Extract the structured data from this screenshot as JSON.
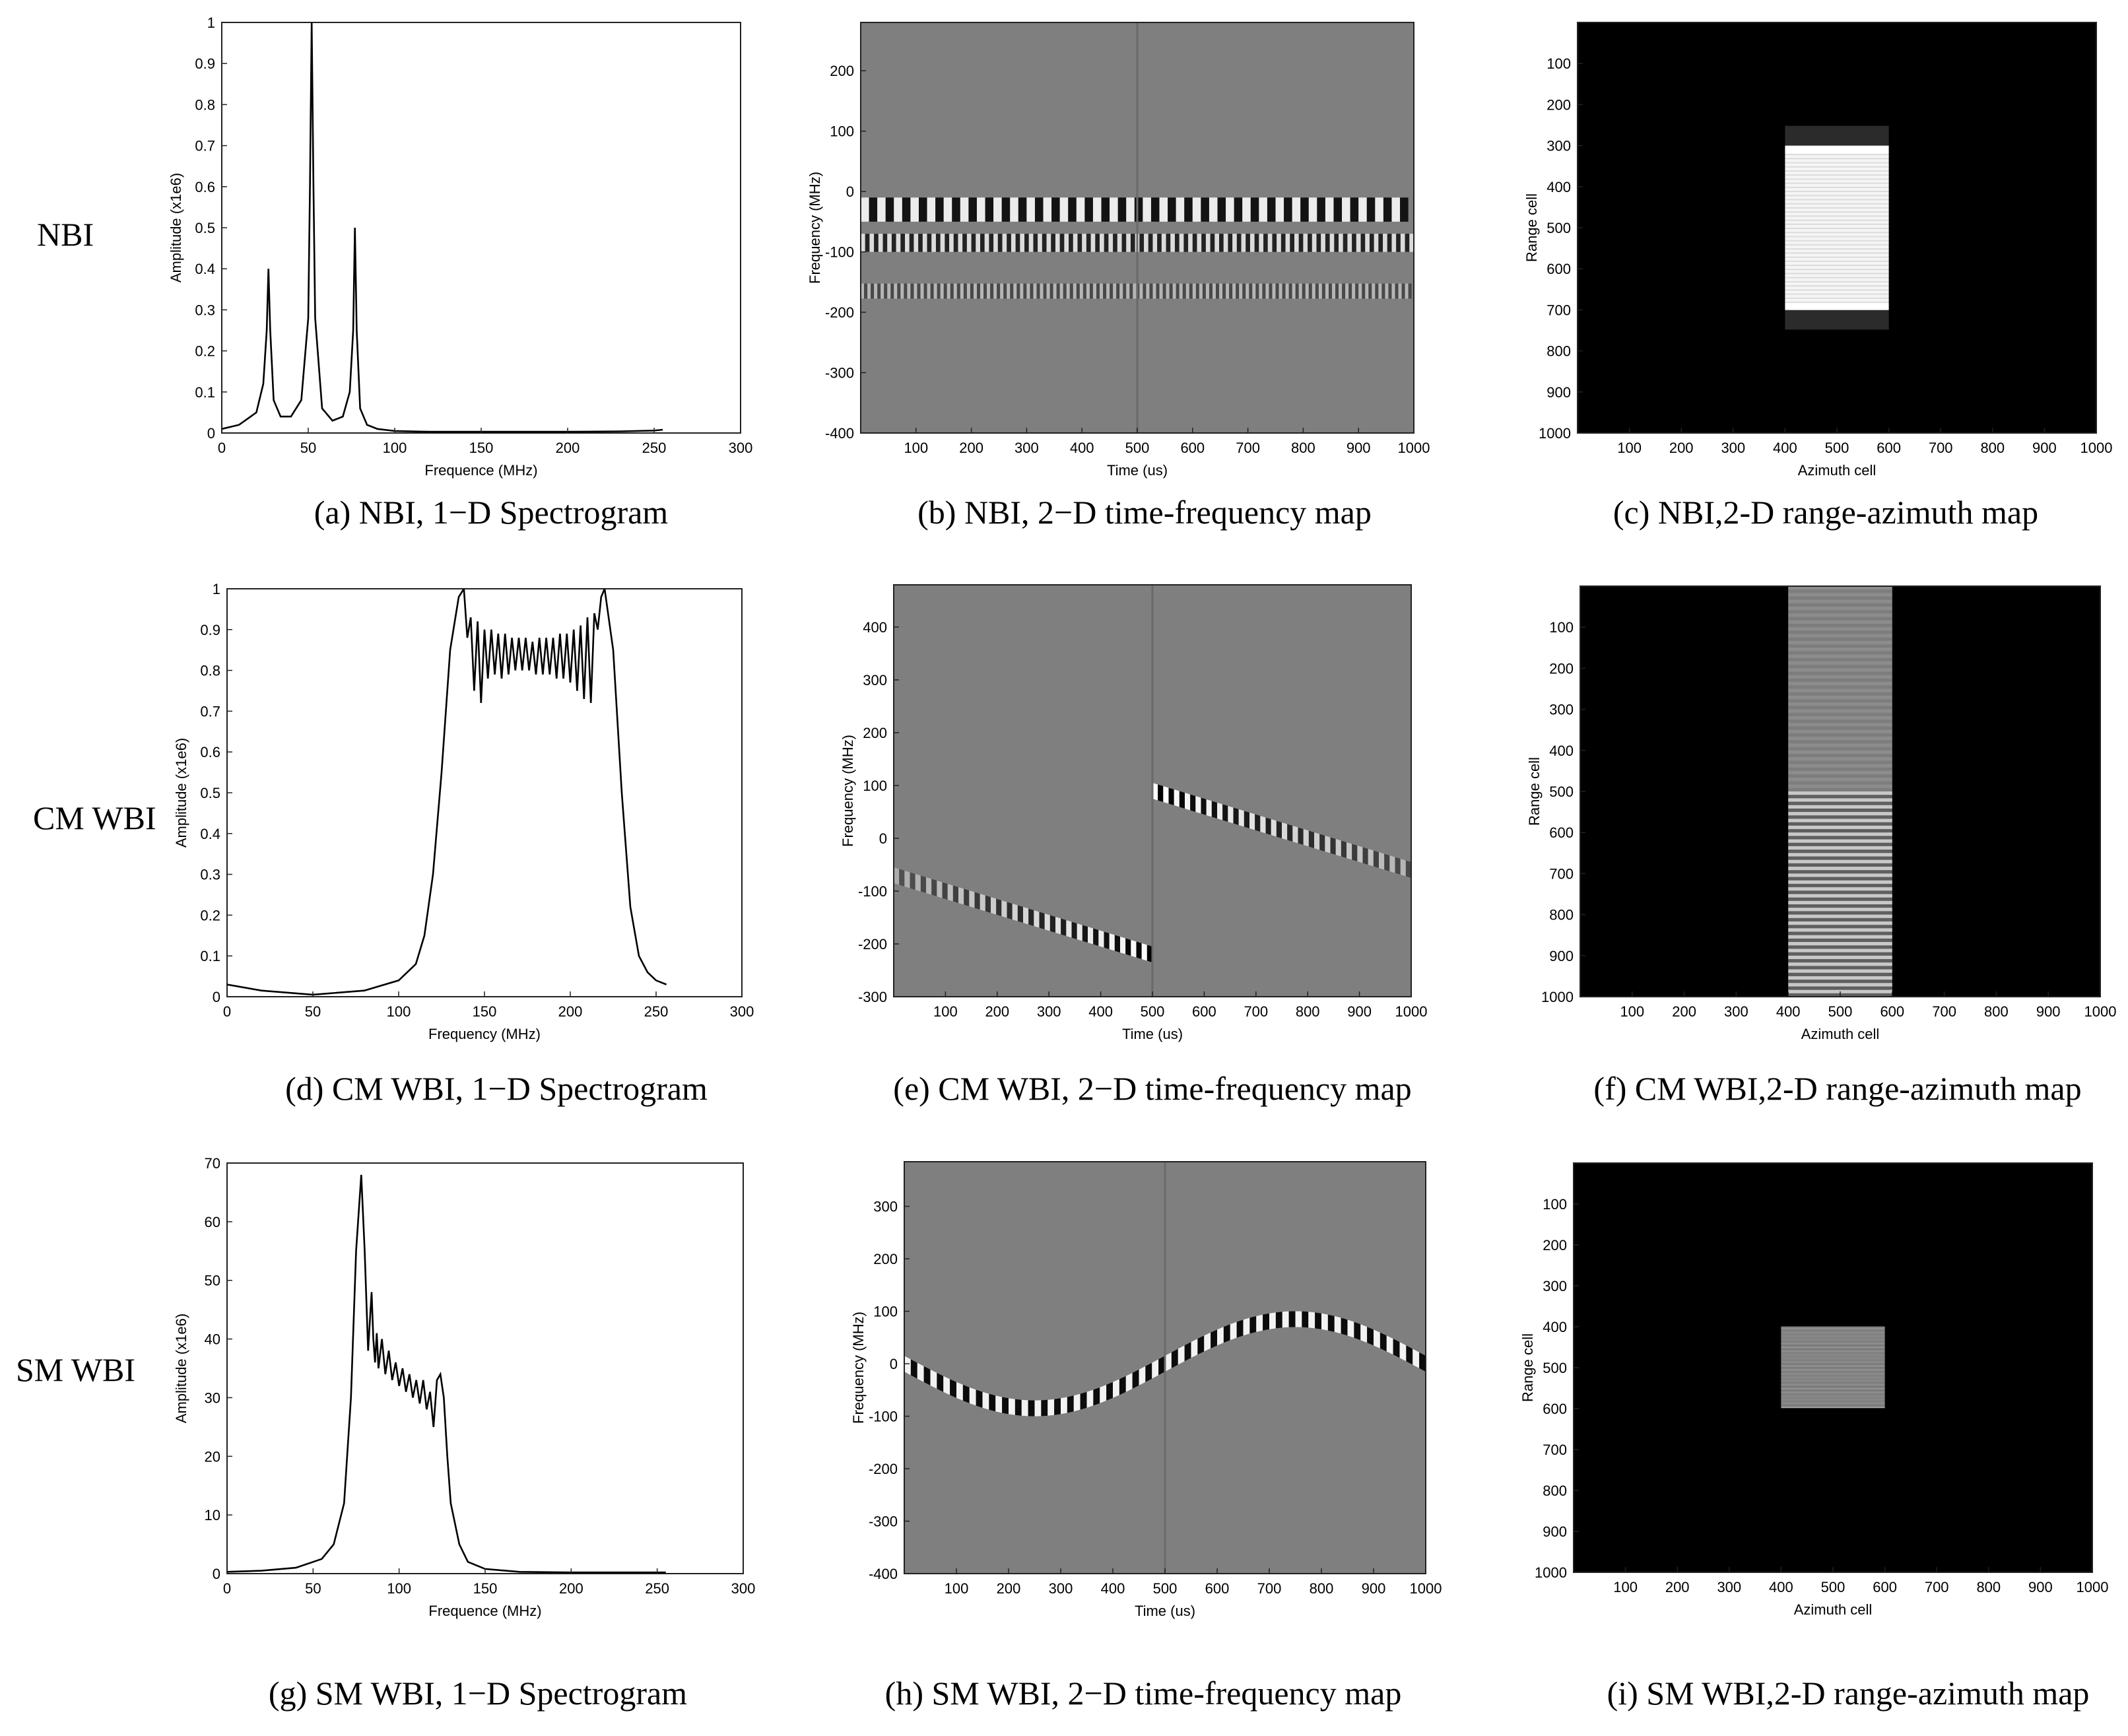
{
  "row_labels": [
    "NBI",
    "CM WBI",
    "SM WBI"
  ],
  "captions": [
    "(a) NBI, 1−D Spectrogram",
    "(b) NBI, 2−D  time-frequency map",
    "(c) NBI,2-D  range-azimuth  map",
    "(d) CM WBI, 1−D Spectrogram",
    "(e) CM WBI, 2−D  time-frequency map",
    "(f) CM WBI,2-D  range-azimuth  map",
    "(g) SM WBI, 1−D Spectrogram",
    "(h) SM WBI, 2−D  time-frequency map",
    "(i) SM WBI,2-D  range-azimuth  map"
  ],
  "chart_data": [
    {
      "id": "a",
      "type": "line",
      "xlabel": "Frequence (MHz)",
      "ylabel": "Amplitude (x1e6)",
      "xlim": [
        0,
        300
      ],
      "ylim": [
        0,
        1
      ],
      "xticks": [
        "0",
        "50",
        "100",
        "150",
        "200",
        "250",
        "300"
      ],
      "yticks": [
        "0",
        "0.1",
        "0.2",
        "0.3",
        "0.4",
        "0.5",
        "0.6",
        "0.7",
        "0.8",
        "0.9",
        "1"
      ],
      "x": [
        0,
        10,
        20,
        24,
        26,
        27,
        28,
        30,
        34,
        40,
        46,
        50,
        51,
        52,
        53,
        54,
        58,
        64,
        70,
        74,
        76,
        77,
        78,
        80,
        84,
        90,
        100,
        120,
        150,
        200,
        230,
        250,
        255
      ],
      "y": [
        0.01,
        0.02,
        0.05,
        0.12,
        0.25,
        0.4,
        0.25,
        0.08,
        0.04,
        0.04,
        0.08,
        0.28,
        0.6,
        1.0,
        0.6,
        0.28,
        0.06,
        0.03,
        0.04,
        0.1,
        0.25,
        0.5,
        0.25,
        0.06,
        0.02,
        0.01,
        0.005,
        0.003,
        0.003,
        0.003,
        0.004,
        0.006,
        0.008
      ]
    },
    {
      "id": "b",
      "type": "heatmap",
      "xlabel": "Time (us)",
      "ylabel": "Frequency (MHz)",
      "xlim": [
        0,
        1000
      ],
      "ylim": [
        -400,
        280
      ],
      "xticks": [
        "100",
        "200",
        "300",
        "400",
        "500",
        "600",
        "700",
        "800",
        "900",
        "1000"
      ],
      "yticks": [
        "200",
        "100",
        "0",
        "-100",
        "-200",
        "-300",
        "-400"
      ],
      "background_gray": "#7f7f7f",
      "bands": [
        {
          "freq": -30,
          "width_mhz": 40,
          "strength": 1.0,
          "period_us": 30,
          "start_us": 0,
          "end_us": 1000
        },
        {
          "freq": -85,
          "width_mhz": 30,
          "strength": 0.85,
          "period_us": 16,
          "start_us": 0,
          "end_us": 1000
        },
        {
          "freq": -165,
          "width_mhz": 25,
          "strength": 0.5,
          "period_us": 12,
          "start_us": 0,
          "end_us": 1000
        }
      ]
    },
    {
      "id": "c",
      "type": "heatmap",
      "xlabel": "Azimuth cell",
      "ylabel": "Range cell",
      "xlim": [
        0,
        1000
      ],
      "ylim": [
        1000,
        0
      ],
      "xticks": [
        "100",
        "200",
        "300",
        "400",
        "500",
        "600",
        "700",
        "800",
        "900",
        "1000"
      ],
      "yticks": [
        "100",
        "200",
        "300",
        "400",
        "500",
        "600",
        "700",
        "800",
        "900",
        "1000"
      ],
      "block": {
        "az": [
          400,
          600
        ],
        "range": [
          300,
          700
        ],
        "pattern": "nbi"
      }
    },
    {
      "id": "d",
      "type": "line",
      "xlabel": "Frequency (MHz)",
      "ylabel": "Amplitude (x1e6)",
      "xlim": [
        0,
        300
      ],
      "ylim": [
        0,
        1
      ],
      "xticks": [
        "0",
        "50",
        "100",
        "150",
        "200",
        "250",
        "300"
      ],
      "yticks": [
        "0",
        "0.1",
        "0.2",
        "0.3",
        "0.4",
        "0.5",
        "0.6",
        "0.7",
        "0.8",
        "0.9",
        "1"
      ],
      "x": [
        0,
        20,
        50,
        80,
        100,
        110,
        115,
        120,
        125,
        130,
        135,
        138,
        140,
        142,
        144,
        146,
        148,
        150,
        152,
        154,
        156,
        158,
        160,
        162,
        164,
        166,
        168,
        170,
        172,
        174,
        176,
        178,
        180,
        182,
        184,
        186,
        188,
        190,
        192,
        194,
        196,
        198,
        200,
        202,
        204,
        206,
        208,
        210,
        212,
        214,
        216,
        218,
        220,
        225,
        230,
        235,
        240,
        245,
        250,
        256
      ],
      "y": [
        0.03,
        0.015,
        0.005,
        0.015,
        0.04,
        0.08,
        0.15,
        0.3,
        0.55,
        0.85,
        0.98,
        1.0,
        0.88,
        0.93,
        0.75,
        0.92,
        0.72,
        0.9,
        0.78,
        0.9,
        0.79,
        0.89,
        0.78,
        0.89,
        0.79,
        0.88,
        0.8,
        0.88,
        0.8,
        0.88,
        0.8,
        0.87,
        0.79,
        0.88,
        0.79,
        0.88,
        0.79,
        0.88,
        0.78,
        0.89,
        0.78,
        0.89,
        0.77,
        0.9,
        0.75,
        0.91,
        0.73,
        0.93,
        0.72,
        0.94,
        0.9,
        0.98,
        1.0,
        0.85,
        0.5,
        0.22,
        0.1,
        0.06,
        0.04,
        0.03
      ]
    },
    {
      "id": "e",
      "type": "heatmap",
      "xlabel": "Time (us)",
      "ylabel": "Frequency (MHz)",
      "xlim": [
        0,
        1000
      ],
      "ylim": [
        -300,
        480
      ],
      "xticks": [
        "100",
        "200",
        "300",
        "400",
        "500",
        "600",
        "700",
        "800",
        "900",
        "1000"
      ],
      "yticks": [
        "400",
        "300",
        "200",
        "100",
        "0",
        "-100",
        "-200",
        "-300"
      ],
      "background_gray": "#7f7f7f",
      "chirps": [
        {
          "t": [
            0,
            500
          ],
          "f": [
            -70,
            -220
          ]
        },
        {
          "t": [
            500,
            1000
          ],
          "f": [
            90,
            -60
          ]
        }
      ]
    },
    {
      "id": "f",
      "type": "heatmap",
      "xlabel": "Azimuth cell",
      "ylabel": "Range cell",
      "xlim": [
        0,
        1000
      ],
      "ylim": [
        1000,
        0
      ],
      "xticks": [
        "100",
        "200",
        "300",
        "400",
        "500",
        "600",
        "700",
        "800",
        "900",
        "1000"
      ],
      "yticks": [
        "100",
        "200",
        "300",
        "400",
        "500",
        "600",
        "700",
        "800",
        "900",
        "1000"
      ],
      "block": {
        "az": [
          400,
          600
        ],
        "range": [
          0,
          1000
        ],
        "pattern": "cm"
      }
    },
    {
      "id": "g",
      "type": "line",
      "xlabel": "Frequence (MHz)",
      "ylabel": "Amplitude (x1e6)",
      "xlim": [
        0,
        300
      ],
      "ylim": [
        0,
        70
      ],
      "xticks": [
        "0",
        "50",
        "100",
        "150",
        "200",
        "250",
        "300"
      ],
      "yticks": [
        "0",
        "10",
        "20",
        "30",
        "40",
        "50",
        "60",
        "70"
      ],
      "x": [
        0,
        20,
        40,
        55,
        62,
        68,
        72,
        75,
        78,
        80,
        82,
        84,
        85,
        86,
        87,
        88,
        90,
        92,
        94,
        96,
        98,
        100,
        102,
        104,
        106,
        108,
        110,
        112,
        114,
        116,
        118,
        120,
        122,
        124,
        126,
        128,
        130,
        135,
        140,
        150,
        170,
        200,
        230,
        255
      ],
      "y": [
        0.3,
        0.5,
        1.0,
        2.5,
        5.0,
        12.0,
        30.0,
        55.0,
        68.0,
        55.0,
        38.0,
        48.0,
        40.0,
        36.0,
        41.0,
        35.0,
        40.0,
        34.0,
        38.0,
        33.0,
        36.0,
        32.0,
        35.0,
        31.0,
        34.0,
        30.0,
        33.0,
        29.0,
        33.0,
        28.0,
        31.0,
        25.0,
        33.0,
        34.0,
        30.0,
        20.0,
        12.0,
        5.0,
        2.0,
        0.8,
        0.3,
        0.2,
        0.2,
        0.2
      ]
    },
    {
      "id": "h",
      "type": "heatmap",
      "xlabel": "Time (us)",
      "ylabel": "Frequency (MHz)",
      "xlim": [
        0,
        1000
      ],
      "ylim": [
        -400,
        385
      ],
      "xticks": [
        "100",
        "200",
        "300",
        "400",
        "500",
        "600",
        "700",
        "800",
        "900",
        "1000"
      ],
      "yticks": [
        "300",
        "200",
        "100",
        "0",
        "-100",
        "-200",
        "-300",
        "-400"
      ],
      "background_gray": "#7f7f7f",
      "sinusoid": {
        "t": [
          0,
          1000
        ],
        "amplitude": 85,
        "period_us": 1000,
        "phase": "down-first"
      }
    },
    {
      "id": "i",
      "type": "heatmap",
      "xlabel": "Azimuth cell",
      "ylabel": "Range cell",
      "xlim": [
        0,
        1000
      ],
      "ylim": [
        1000,
        0
      ],
      "xticks": [
        "100",
        "200",
        "300",
        "400",
        "500",
        "600",
        "700",
        "800",
        "900",
        "1000"
      ],
      "yticks": [
        "100",
        "200",
        "300",
        "400",
        "500",
        "600",
        "700",
        "800",
        "900",
        "1000"
      ],
      "block": {
        "az": [
          400,
          600
        ],
        "range": [
          400,
          600
        ],
        "pattern": "sm"
      }
    }
  ]
}
